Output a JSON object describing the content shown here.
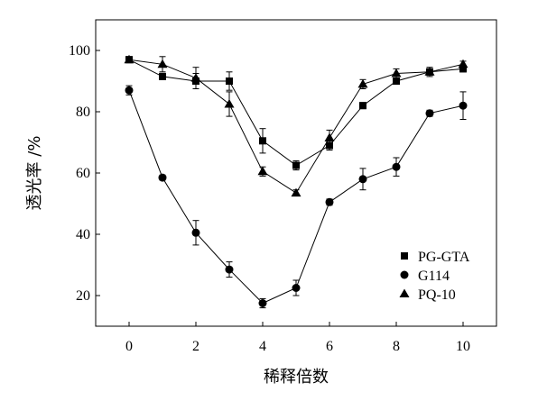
{
  "chart_data": {
    "type": "line",
    "title": "",
    "xlabel": "稀释倍数",
    "ylabel": "透光率 /%",
    "xlim": [
      -1,
      11
    ],
    "ylim": [
      10,
      110
    ],
    "xticks": [
      0,
      2,
      4,
      6,
      8,
      10
    ],
    "yticks": [
      20,
      40,
      60,
      80,
      100
    ],
    "grid": false,
    "legend_position": "bottom-right",
    "x": [
      0,
      1,
      2,
      3,
      4,
      5,
      6,
      7,
      8,
      9,
      10
    ],
    "series": [
      {
        "name": "PG-GTA",
        "marker": "square",
        "values": [
          97,
          91.5,
          90,
          90,
          70.5,
          62.5,
          69,
          82,
          90,
          93,
          94
        ],
        "errors": [
          0.8,
          1.0,
          2.5,
          3.0,
          4.0,
          1.5,
          1.5,
          1.0,
          1.0,
          1.5,
          1.0
        ]
      },
      {
        "name": "G114",
        "marker": "circle",
        "values": [
          87,
          58.5,
          40.5,
          28.5,
          17.5,
          22.5,
          50.5,
          58,
          62,
          79.5,
          82
        ],
        "errors": [
          1.5,
          0.8,
          4.0,
          2.5,
          1.5,
          2.5,
          1.0,
          3.5,
          3.0,
          1.0,
          4.5
        ]
      },
      {
        "name": "PQ-10",
        "marker": "triangle",
        "values": [
          97,
          95.5,
          91,
          82.5,
          60.5,
          53.5,
          71.5,
          89,
          92.5,
          93,
          95.5
        ],
        "errors": [
          1.0,
          2.5,
          3.5,
          4.0,
          1.5,
          1.0,
          2.5,
          1.5,
          1.5,
          1.0,
          1.0
        ]
      }
    ]
  }
}
